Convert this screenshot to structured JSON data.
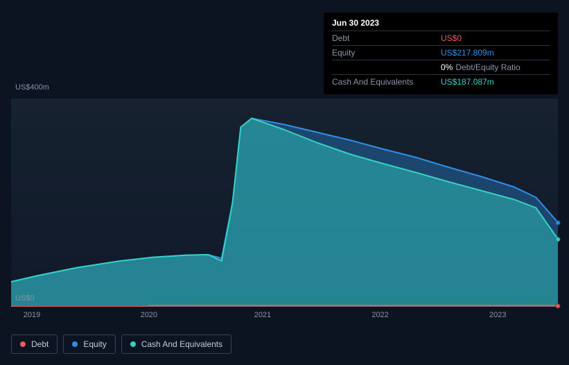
{
  "tooltip": {
    "date": "Jun 30 2023",
    "rows": {
      "debt": {
        "label": "Debt",
        "value": "US$0",
        "color": "#eb5b5b"
      },
      "equity": {
        "label": "Equity",
        "value": "US$217.809m",
        "color": "#2f8fe8"
      },
      "ratio": {
        "value": "0%",
        "suffix": "Debt/Equity Ratio",
        "value_color": "#ffffff"
      },
      "cash": {
        "label": "Cash And Equivalents",
        "value": "US$187.087m",
        "color": "#34d3c0"
      }
    }
  },
  "chart": {
    "type": "area",
    "background_gradient": [
      "#162230",
      "#10192a"
    ],
    "grid_color": "#2a3442",
    "ylabel_top": "US$400m",
    "ylabel_bottom": "US$0",
    "ylim": [
      0,
      400
    ],
    "x_categories": [
      "2019",
      "2020",
      "2021",
      "2022",
      "2023"
    ],
    "x_positions_pct": [
      3.8,
      25.2,
      46.0,
      67.5,
      89.0
    ],
    "series": {
      "debt": {
        "label": "Debt",
        "color": "#eb5b5b",
        "fill_opacity": 0.0,
        "line_width": 2,
        "points": [
          [
            0.0,
            0
          ],
          [
            25.0,
            0
          ],
          [
            25.2,
            2
          ],
          [
            100.0,
            2
          ]
        ]
      },
      "equity": {
        "label": "Equity",
        "color": "#2f8fe8",
        "fill_opacity": 0.35,
        "line_width": 2,
        "points": [
          [
            0.0,
            48
          ],
          [
            5,
            60
          ],
          [
            12,
            75
          ],
          [
            20,
            88
          ],
          [
            26,
            95
          ],
          [
            32,
            99
          ],
          [
            36,
            100
          ],
          [
            38.5,
            93
          ],
          [
            40.5,
            200
          ],
          [
            42,
            345
          ],
          [
            44,
            362
          ],
          [
            50,
            350
          ],
          [
            56,
            335
          ],
          [
            62,
            320
          ],
          [
            68,
            303
          ],
          [
            74,
            287
          ],
          [
            80,
            268
          ],
          [
            86,
            250
          ],
          [
            92,
            230
          ],
          [
            96,
            210
          ],
          [
            100,
            162
          ]
        ]
      },
      "cash": {
        "label": "Cash And Equivalents",
        "color": "#34d3c0",
        "fill_opacity": 0.45,
        "line_width": 2,
        "points": [
          [
            0.0,
            48
          ],
          [
            5,
            60
          ],
          [
            12,
            75
          ],
          [
            20,
            88
          ],
          [
            26,
            95
          ],
          [
            32,
            99
          ],
          [
            36,
            100
          ],
          [
            38.5,
            88
          ],
          [
            40.5,
            200
          ],
          [
            42,
            345
          ],
          [
            44,
            362
          ],
          [
            50,
            340
          ],
          [
            56,
            315
          ],
          [
            62,
            293
          ],
          [
            68,
            275
          ],
          [
            74,
            258
          ],
          [
            80,
            240
          ],
          [
            86,
            223
          ],
          [
            92,
            206
          ],
          [
            96,
            190
          ],
          [
            100,
            130
          ]
        ]
      }
    },
    "legend": [
      {
        "key": "debt",
        "label": "Debt",
        "color": "#eb5b5b"
      },
      {
        "key": "equity",
        "label": "Equity",
        "color": "#2f8fe8"
      },
      {
        "key": "cash",
        "label": "Cash And Equivalents",
        "color": "#34d3c0"
      }
    ]
  }
}
